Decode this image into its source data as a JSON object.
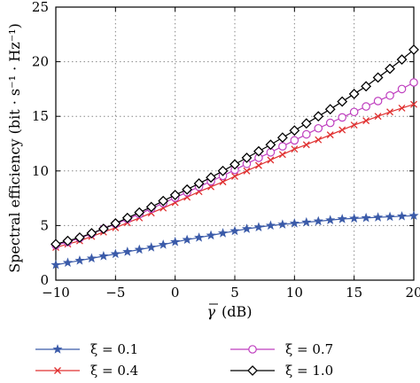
{
  "chart_data": {
    "type": "line",
    "xlabel_symbol": "γ",
    "xlabel_unit": "(dB)",
    "ylabel": "Spectral efficiency (bit · s⁻¹ · Hz⁻¹)",
    "xlim": [
      -10,
      20
    ],
    "ylim": [
      0,
      25
    ],
    "xticks": [
      -10,
      -5,
      0,
      5,
      10,
      15,
      20
    ],
    "yticks": [
      0,
      5,
      10,
      15,
      20,
      25
    ],
    "xtick_labels": [
      "−10",
      "−5",
      "0",
      "5",
      "10",
      "15",
      "20"
    ],
    "ytick_labels": [
      "0",
      "5",
      "10",
      "15",
      "20",
      "25"
    ],
    "grid": true,
    "legend_position": "below",
    "x": [
      -10,
      -9,
      -8,
      -7,
      -6,
      -5,
      -4,
      -3,
      -2,
      -1,
      0,
      1,
      2,
      3,
      4,
      5,
      6,
      7,
      8,
      9,
      10,
      11,
      12,
      13,
      14,
      15,
      16,
      17,
      18,
      19,
      20
    ],
    "series": [
      {
        "name": "ξ = 0.1",
        "color": "#3b5ba9",
        "marker": "star",
        "values": [
          1.4,
          1.6,
          1.8,
          2.0,
          2.2,
          2.4,
          2.6,
          2.8,
          3.0,
          3.25,
          3.5,
          3.7,
          3.9,
          4.1,
          4.3,
          4.5,
          4.7,
          4.85,
          5.0,
          5.1,
          5.2,
          5.3,
          5.4,
          5.5,
          5.6,
          5.65,
          5.7,
          5.75,
          5.8,
          5.85,
          5.9
        ]
      },
      {
        "name": "ξ = 0.4",
        "color": "#e03030",
        "marker": "x",
        "values": [
          3.0,
          3.3,
          3.6,
          4.0,
          4.4,
          4.8,
          5.25,
          5.7,
          6.15,
          6.6,
          7.1,
          7.6,
          8.1,
          8.55,
          9.0,
          9.5,
          10.0,
          10.5,
          11.0,
          11.5,
          12.0,
          12.4,
          12.85,
          13.3,
          13.75,
          14.2,
          14.6,
          15.0,
          15.4,
          15.75,
          16.1
        ]
      },
      {
        "name": "ξ = 0.7",
        "color": "#bf3fbf",
        "marker": "circle",
        "values": [
          3.2,
          3.5,
          3.85,
          4.25,
          4.7,
          5.15,
          5.6,
          6.05,
          6.55,
          7.05,
          7.55,
          8.05,
          8.55,
          9.05,
          9.55,
          10.1,
          10.65,
          11.2,
          11.7,
          12.25,
          12.8,
          13.35,
          13.9,
          14.4,
          14.9,
          15.4,
          15.9,
          16.4,
          16.9,
          17.5,
          18.1
        ]
      },
      {
        "name": "ξ = 1.0",
        "color": "#000000",
        "marker": "diamond",
        "values": [
          3.3,
          3.6,
          3.9,
          4.3,
          4.7,
          5.2,
          5.7,
          6.2,
          6.7,
          7.25,
          7.8,
          8.3,
          8.85,
          9.4,
          10.0,
          10.6,
          11.2,
          11.8,
          12.4,
          13.05,
          13.7,
          14.35,
          15.0,
          15.65,
          16.35,
          17.05,
          17.75,
          18.55,
          19.35,
          20.2,
          21.1
        ]
      }
    ]
  }
}
